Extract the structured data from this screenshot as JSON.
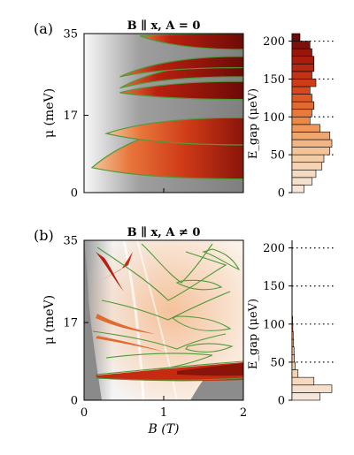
{
  "figure": {
    "panel_a_label": "(a)",
    "panel_b_label": "(b)",
    "ylabel_mu": "μ (meV)",
    "xlabel_B": "B (T)",
    "ylabel_gap": "E_gap (μeV)"
  },
  "colors": {
    "background_gray": "#7f7f7f",
    "gap_dark": "#6d0a07",
    "gap_light": "#f6e9df",
    "boundary_green": "#4f9a3a"
  },
  "chart_data": [
    {
      "panel": "(a)",
      "type": "heatmap",
      "title": "B ∥ x, A = 0",
      "xlabel": "B (T)",
      "ylabel": "μ (meV)",
      "xlim": [
        0,
        2
      ],
      "ylim": [
        0,
        35
      ],
      "yticks": [
        0,
        17,
        35
      ],
      "topological_lobes": [
        {
          "tip_B": 0.1,
          "tip_mu": 5.5,
          "upper_mu_at_2T": 15.5,
          "lower_mu_at_2T": 3.0
        },
        {
          "tip_B": 0.28,
          "tip_mu": 13.0,
          "upper_mu_at_2T": 16.5,
          "lower_mu_at_2T": 10.5
        },
        {
          "tip_B": 0.45,
          "tip_mu": 22.0,
          "upper_mu_at_2T": 24.5,
          "lower_mu_at_2T": 20.5
        },
        {
          "tip_B": 0.45,
          "tip_mu": 23.0,
          "upper_mu_at_2T": 28.5,
          "lower_mu_at_2T": 25.5
        },
        {
          "tip_B": 0.45,
          "tip_mu": 25.5,
          "upper_mu_at_2T": 30.0,
          "lower_mu_at_2T": 27.5
        },
        {
          "tip_B": 0.7,
          "tip_mu": 34.5,
          "upper_mu_at_2T": 35.0,
          "lower_mu_at_2T": 31.5
        }
      ]
    },
    {
      "panel": "(a) histogram",
      "type": "bar",
      "orientation": "horizontal",
      "ylabel": "E_gap (μeV)",
      "ylim": [
        0,
        210
      ],
      "yticks": [
        0,
        50,
        100,
        150,
        200
      ],
      "bin_width": 10,
      "bin_centers": [
        5,
        15,
        25,
        35,
        45,
        55,
        65,
        75,
        85,
        95,
        105,
        115,
        125,
        135,
        145,
        155,
        165,
        175,
        185,
        195,
        205
      ],
      "counts": [
        0.3,
        0.5,
        0.6,
        0.75,
        0.8,
        0.95,
        1.0,
        0.95,
        0.7,
        0.45,
        0.5,
        0.55,
        0.5,
        0.45,
        0.6,
        0.5,
        0.55,
        0.55,
        0.5,
        0.45,
        0.2
      ]
    },
    {
      "panel": "(b)",
      "type": "heatmap",
      "title": "B ∥ x, A ≠ 0",
      "xlabel": "B (T)",
      "ylabel": "μ (meV)",
      "xlim": [
        0,
        2
      ],
      "ylim": [
        0,
        35
      ],
      "yticks": [
        0,
        17,
        35
      ],
      "xticks": [
        0,
        1,
        2
      ]
    },
    {
      "panel": "(b) histogram",
      "type": "bar",
      "orientation": "horizontal",
      "ylabel": "E_gap (μeV)",
      "ylim": [
        0,
        210
      ],
      "yticks": [
        0,
        50,
        100,
        150,
        200
      ],
      "bin_width": 10,
      "bin_centers": [
        5,
        15,
        25,
        35,
        45,
        55,
        65,
        75,
        85,
        95,
        105
      ],
      "counts": [
        0.7,
        1.0,
        0.55,
        0.15,
        0.08,
        0.06,
        0.05,
        0.04,
        0.03,
        0.02,
        0.015
      ]
    }
  ]
}
